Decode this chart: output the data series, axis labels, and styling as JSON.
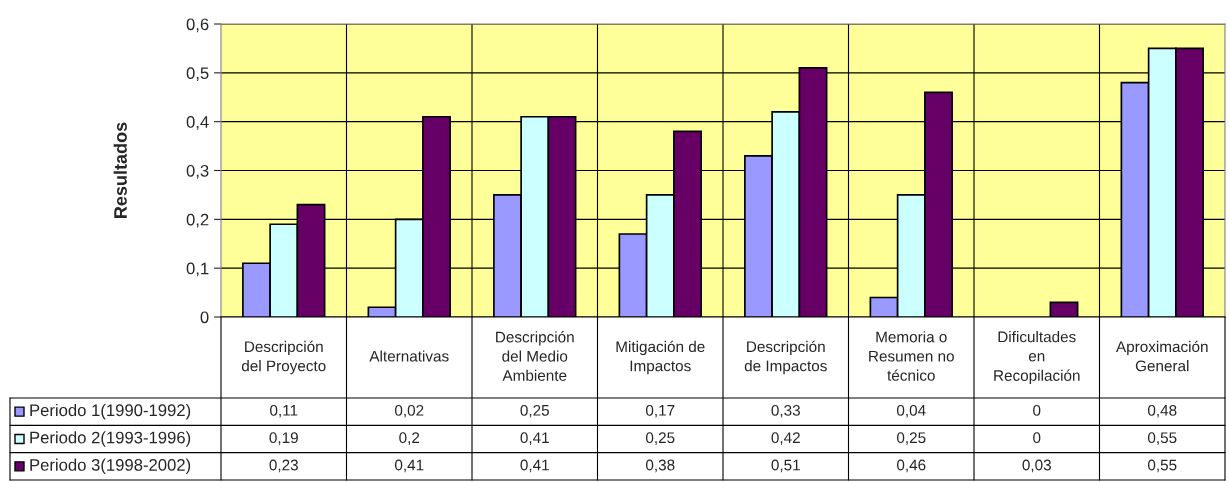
{
  "chart_data": {
    "type": "bar",
    "ylabel": "Resultados",
    "categories": [
      "Descripción\ndel Proyecto",
      "Alternativas",
      "Descripción\ndel Medio\nAmbiente",
      "Mitigación de\nImpactos",
      "Descripción\nde Impactos",
      "Memoria o\nResumen no\ntécnico",
      "Dificultades\nen\nRecopilación",
      "Aproximación\nGeneral"
    ],
    "series": [
      {
        "name": "Periodo 1(1990-1992)",
        "color": "#9999ff",
        "values": [
          0.11,
          0.02,
          0.25,
          0.17,
          0.33,
          0.04,
          0,
          0.48
        ],
        "value_labels": [
          "0,11",
          "0,02",
          "0,25",
          "0,17",
          "0,33",
          "0,04",
          "0",
          "0,48"
        ]
      },
      {
        "name": "Periodo 2(1993-1996)",
        "color": "#ccffff",
        "values": [
          0.19,
          0.2,
          0.41,
          0.25,
          0.42,
          0.25,
          0,
          0.55
        ],
        "value_labels": [
          "0,19",
          "0,2",
          "0,41",
          "0,25",
          "0,42",
          "0,25",
          "0",
          "0,55"
        ]
      },
      {
        "name": "Periodo 3(1998-2002)",
        "color": "#660066",
        "values": [
          0.23,
          0.41,
          0.41,
          0.38,
          0.51,
          0.46,
          0.03,
          0.55
        ],
        "value_labels": [
          "0,23",
          "0,41",
          "0,41",
          "0,38",
          "0,51",
          "0,46",
          "0,03",
          "0,55"
        ]
      }
    ],
    "ylim": [
      0,
      0.6
    ],
    "yticks": [
      0,
      {
        "value": 0.1,
        "label": "0,1"
      },
      {
        "value": 0.2,
        "label": "0,2"
      },
      {
        "value": 0.3,
        "label": "0,3"
      },
      {
        "value": 0.4,
        "label": "0,4"
      },
      {
        "value": 0.5,
        "label": "0,5"
      },
      {
        "value": 0.6,
        "label": "0,6"
      }
    ],
    "grid": true,
    "legend": "bottom"
  }
}
